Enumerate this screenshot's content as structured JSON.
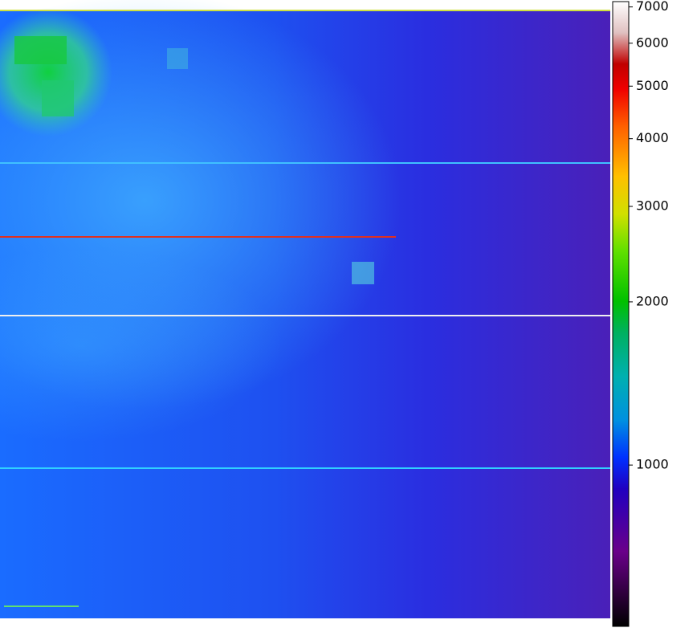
{
  "chart_data": {
    "type": "image",
    "colorbar": {
      "scale": "log",
      "lim": [
        504,
        7160
      ],
      "ticks": [
        1000,
        2000,
        3000,
        4000,
        5000,
        6000,
        7000
      ]
    }
  }
}
